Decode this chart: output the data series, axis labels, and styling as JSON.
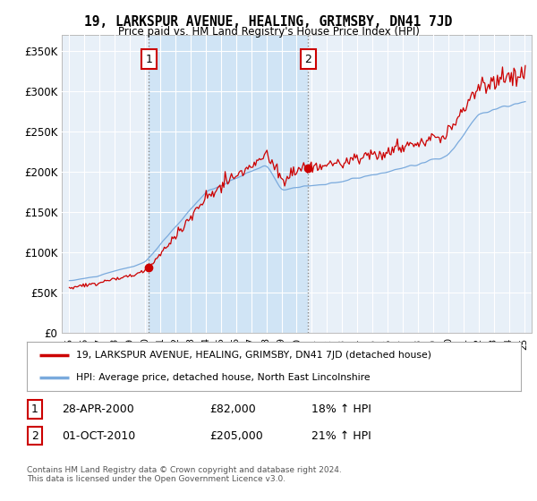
{
  "title": "19, LARKSPUR AVENUE, HEALING, GRIMSBY, DN41 7JD",
  "subtitle": "Price paid vs. HM Land Registry's House Price Index (HPI)",
  "background_color": "#ffffff",
  "plot_bg_color": "#e8f0f8",
  "shade_color": "#d0e4f5",
  "grid_color": "#ffffff",
  "hpi_color": "#7aaadd",
  "price_color": "#cc0000",
  "ylim": [
    0,
    370000
  ],
  "yticks": [
    0,
    50000,
    100000,
    150000,
    200000,
    250000,
    300000,
    350000
  ],
  "ytick_labels": [
    "£0",
    "£50K",
    "£100K",
    "£150K",
    "£200K",
    "£250K",
    "£300K",
    "£350K"
  ],
  "sale1_date": 2000.25,
  "sale1_price": 82000,
  "sale1_label": "1",
  "sale2_date": 2010.75,
  "sale2_price": 205000,
  "sale2_label": "2",
  "legend_line1": "19, LARKSPUR AVENUE, HEALING, GRIMSBY, DN41 7JD (detached house)",
  "legend_line2": "HPI: Average price, detached house, North East Lincolnshire",
  "table_row1": [
    "1",
    "28-APR-2000",
    "£82,000",
    "18% ↑ HPI"
  ],
  "table_row2": [
    "2",
    "01-OCT-2010",
    "£205,000",
    "21% ↑ HPI"
  ],
  "footnote": "Contains HM Land Registry data © Crown copyright and database right 2024.\nThis data is licensed under the Open Government Licence v3.0.",
  "xmin": 1994.5,
  "xmax": 2025.5,
  "hpi_base": 65000,
  "prop_base": 75000
}
